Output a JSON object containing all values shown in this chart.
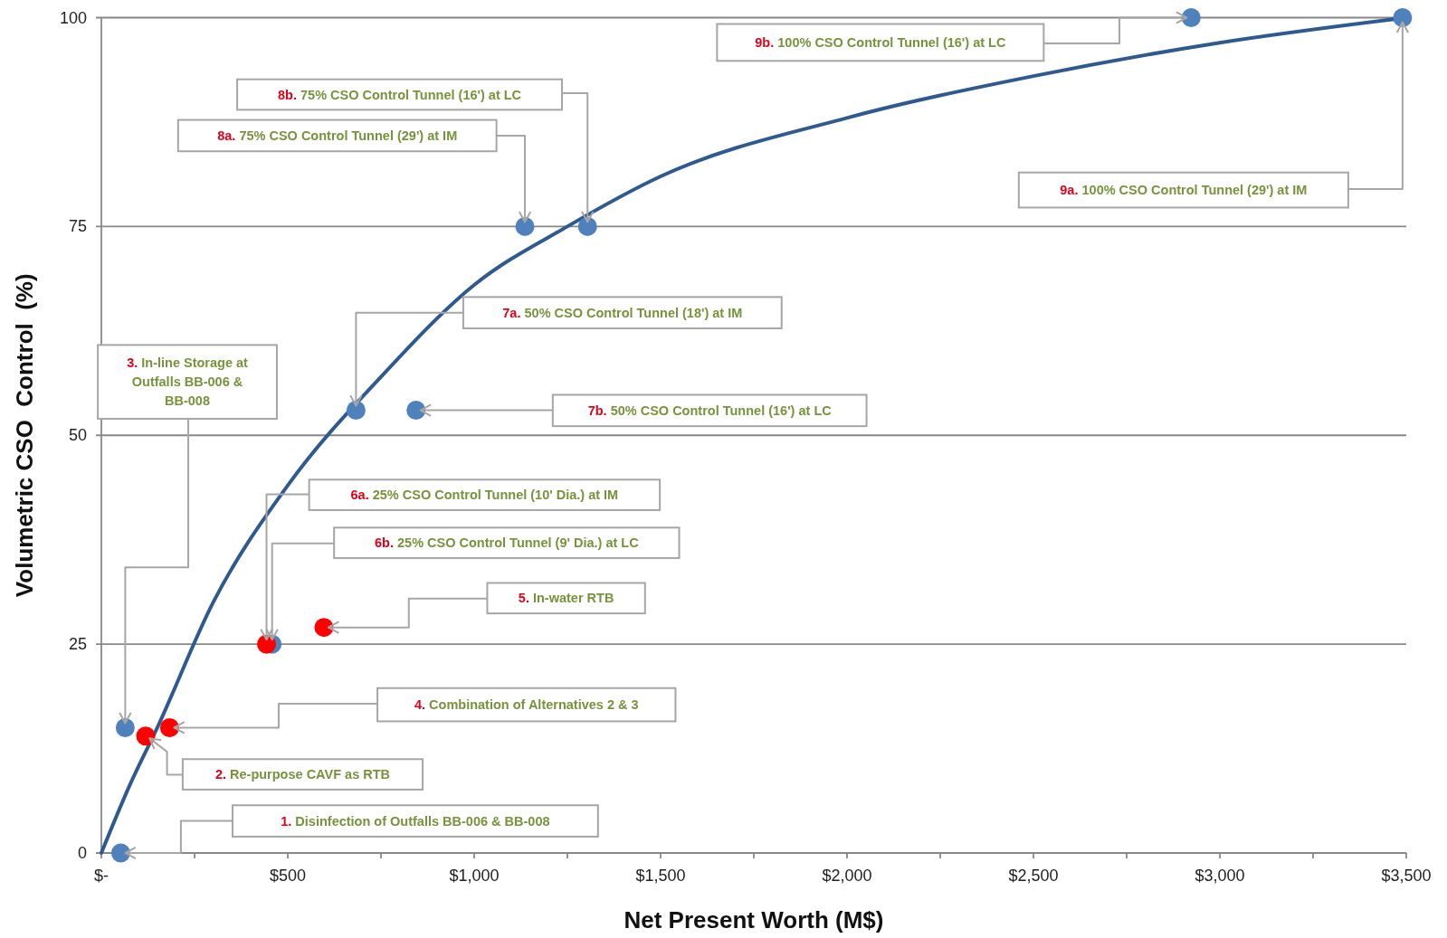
{
  "chart_data": {
    "type": "scatter",
    "xlabel": "Net Present Worth (M$)",
    "ylabel": "Volumetric CSO  Control  (%)",
    "xlim": [
      0,
      3500
    ],
    "ylim": [
      0,
      100
    ],
    "xticks": [
      {
        "value": 0,
        "label": "$-"
      },
      {
        "value": 250,
        "label": null
      },
      {
        "value": 500,
        "label": "$500"
      },
      {
        "value": 750,
        "label": null
      },
      {
        "value": 1000,
        "label": "$1,000"
      },
      {
        "value": 1250,
        "label": null
      },
      {
        "value": 1500,
        "label": "$1,500"
      },
      {
        "value": 1750,
        "label": null
      },
      {
        "value": 2000,
        "label": "$2,000"
      },
      {
        "value": 2250,
        "label": null
      },
      {
        "value": 2500,
        "label": "$2,500"
      },
      {
        "value": 2750,
        "label": null
      },
      {
        "value": 3000,
        "label": "$3,000"
      },
      {
        "value": 3250,
        "label": null
      },
      {
        "value": 3500,
        "label": "$3,500"
      }
    ],
    "yticks": [
      0,
      25,
      50,
      75,
      100
    ],
    "grid": "y",
    "marker": "circle",
    "series": [
      {
        "type": "line",
        "marker": "none",
        "color": "#2f5a8f",
        "x": [
          0,
          75,
          150,
          300,
          500,
          750,
          1000,
          1250,
          1500,
          2000,
          2500,
          3000,
          3500
        ],
        "values": [
          0,
          8,
          15,
          30,
          44,
          57,
          68,
          75,
          81,
          88,
          93,
          97,
          100
        ]
      },
      {
        "color": "#4f81bd",
        "x": [
          52,
          64,
          458,
          683,
          844,
          1136,
          1304,
          2923,
          3490
        ],
        "values": [
          0,
          15,
          25,
          53,
          53,
          75,
          75,
          100,
          100
        ]
      },
      {
        "color": "#ff0000",
        "x": [
          119,
          183,
          443,
          597
        ],
        "values": [
          14,
          15,
          25,
          27
        ]
      }
    ],
    "annotations": [
      {
        "text": "1. Disinfection of Outfalls BB-006 & BB-008",
        "x": 52,
        "y": 0
      },
      {
        "text": "2. Re-purpose CAVF as RTB",
        "x": 119,
        "y": 14
      },
      {
        "text": "3. In-line Storage at Outfalls BB-006 & BB-008",
        "x": 64,
        "y": 15
      },
      {
        "text": "4. Combination of Alternatives 2 & 3",
        "x": 183,
        "y": 15
      },
      {
        "text": "5. In-water RTB",
        "x": 597,
        "y": 27
      },
      {
        "text": "6a. 25% CSO Control Tunnel (10' Dia.) at IM",
        "x": 443,
        "y": 25
      },
      {
        "text": "6b. 25% CSO Control Tunnel (9' Dia.) at LC",
        "x": 458,
        "y": 25
      },
      {
        "text": "7a. 50% CSO Control Tunnel (18') at IM",
        "x": 683,
        "y": 53
      },
      {
        "text": "7b. 50% CSO Control Tunnel (16') at LC",
        "x": 844,
        "y": 53
      },
      {
        "text": "8a. 75% CSO Control Tunnel (29') at IM",
        "x": 1136,
        "y": 75
      },
      {
        "text": "8b. 75% CSO Control Tunnel (16') at LC",
        "x": 1304,
        "y": 75
      },
      {
        "text": "9a. 100% CSO Control Tunnel (29') at IM",
        "x": 3490,
        "y": 100
      },
      {
        "text": "9b. 100% CSO Control Tunnel (16') at LC",
        "x": 2923,
        "y": 100
      }
    ]
  }
}
